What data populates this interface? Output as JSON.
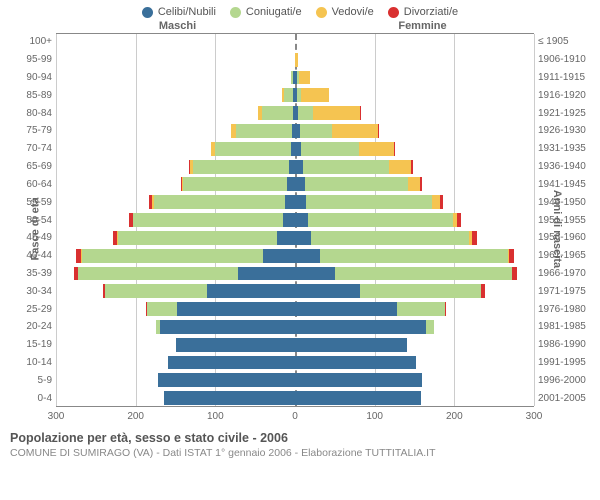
{
  "colors": {
    "celibi": "#3a6f9a",
    "coniugati": "#b4d78f",
    "vedovi": "#f5c451",
    "divorziati": "#d93030",
    "grid": "#cccccc",
    "axis": "#888888",
    "bg": "#ffffff"
  },
  "legend": [
    {
      "key": "celibi",
      "label": "Celibi/Nubili"
    },
    {
      "key": "coniugati",
      "label": "Coniugati/e"
    },
    {
      "key": "vedovi",
      "label": "Vedovi/e"
    },
    {
      "key": "divorziati",
      "label": "Divorziati/e"
    }
  ],
  "headers": {
    "m": "Maschi",
    "f": "Femmine"
  },
  "axis_labels": {
    "left": "Fasce di età",
    "right": "Anni di nascita"
  },
  "xmax": 300,
  "xticks_m": [
    300,
    200,
    100,
    0
  ],
  "xticks_f": [
    100,
    200,
    300
  ],
  "rows": [
    {
      "age": "100+",
      "birth": "≤ 1905",
      "m": [
        0,
        0,
        0,
        0
      ],
      "f": [
        0,
        0,
        0,
        0
      ]
    },
    {
      "age": "95-99",
      "birth": "1906-1910",
      "m": [
        0,
        0,
        0,
        0
      ],
      "f": [
        0,
        0,
        4,
        0
      ]
    },
    {
      "age": "90-94",
      "birth": "1911-1915",
      "m": [
        3,
        2,
        0,
        0
      ],
      "f": [
        3,
        2,
        14,
        0
      ]
    },
    {
      "age": "85-89",
      "birth": "1916-1920",
      "m": [
        2,
        12,
        2,
        0
      ],
      "f": [
        3,
        5,
        35,
        0
      ]
    },
    {
      "age": "80-84",
      "birth": "1921-1925",
      "m": [
        3,
        38,
        6,
        0
      ],
      "f": [
        4,
        18,
        60,
        1
      ]
    },
    {
      "age": "75-79",
      "birth": "1926-1930",
      "m": [
        4,
        70,
        6,
        0
      ],
      "f": [
        6,
        40,
        58,
        1
      ]
    },
    {
      "age": "70-74",
      "birth": "1931-1935",
      "m": [
        5,
        95,
        5,
        0
      ],
      "f": [
        8,
        72,
        44,
        1
      ]
    },
    {
      "age": "65-69",
      "birth": "1936-1940",
      "m": [
        8,
        120,
        4,
        1
      ],
      "f": [
        10,
        108,
        28,
        2
      ]
    },
    {
      "age": "60-64",
      "birth": "1941-1945",
      "m": [
        10,
        130,
        2,
        1
      ],
      "f": [
        12,
        130,
        15,
        2
      ]
    },
    {
      "age": "55-59",
      "birth": "1946-1950",
      "m": [
        12,
        165,
        2,
        4
      ],
      "f": [
        14,
        158,
        10,
        4
      ]
    },
    {
      "age": "50-54",
      "birth": "1951-1955",
      "m": [
        15,
        188,
        1,
        5
      ],
      "f": [
        16,
        182,
        6,
        5
      ]
    },
    {
      "age": "45-49",
      "birth": "1956-1960",
      "m": [
        22,
        200,
        1,
        6
      ],
      "f": [
        20,
        198,
        4,
        6
      ]
    },
    {
      "age": "40-44",
      "birth": "1961-1965",
      "m": [
        40,
        228,
        1,
        6
      ],
      "f": [
        32,
        235,
        2,
        6
      ]
    },
    {
      "age": "35-39",
      "birth": "1966-1970",
      "m": [
        72,
        200,
        0,
        5
      ],
      "f": [
        50,
        222,
        1,
        6
      ]
    },
    {
      "age": "30-34",
      "birth": "1971-1975",
      "m": [
        110,
        128,
        0,
        3
      ],
      "f": [
        82,
        152,
        0,
        4
      ]
    },
    {
      "age": "25-29",
      "birth": "1976-1980",
      "m": [
        148,
        38,
        0,
        1
      ],
      "f": [
        128,
        60,
        0,
        1
      ]
    },
    {
      "age": "20-24",
      "birth": "1981-1985",
      "m": [
        170,
        4,
        0,
        0
      ],
      "f": [
        165,
        10,
        0,
        0
      ]
    },
    {
      "age": "15-19",
      "birth": "1986-1990",
      "m": [
        150,
        0,
        0,
        0
      ],
      "f": [
        140,
        0,
        0,
        0
      ]
    },
    {
      "age": "10-14",
      "birth": "1991-1995",
      "m": [
        160,
        0,
        0,
        0
      ],
      "f": [
        152,
        0,
        0,
        0
      ]
    },
    {
      "age": "5-9",
      "birth": "1996-2000",
      "m": [
        172,
        0,
        0,
        0
      ],
      "f": [
        160,
        0,
        0,
        0
      ]
    },
    {
      "age": "0-4",
      "birth": "2001-2005",
      "m": [
        165,
        0,
        0,
        0
      ],
      "f": [
        158,
        0,
        0,
        0
      ]
    }
  ],
  "footer": {
    "title": "Popolazione per età, sesso e stato civile - 2006",
    "sub": "COMUNE DI SUMIRAGO (VA) - Dati ISTAT 1° gennaio 2006 - Elaborazione TUTTITALIA.IT"
  }
}
